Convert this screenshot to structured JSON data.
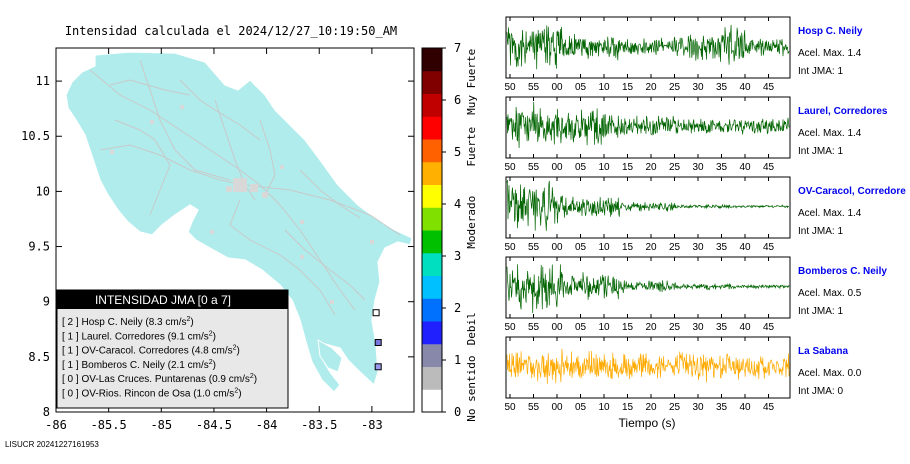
{
  "chart_data": [
    {
      "type": "map",
      "title": "Intensidad calculada el 2024/12/27_10:19:50_AM",
      "footer": "LISUCR 20241227161953",
      "xticks": [
        "-86",
        "-85.5",
        "-85",
        "-84.5",
        "-84",
        "-83.5",
        "-83"
      ],
      "yticks": [
        "11",
        "10.5",
        "10",
        "9.5",
        "9",
        "8.5",
        "8"
      ],
      "xlim": [
        -86,
        -82.6
      ],
      "ylim": [
        8,
        11.3
      ],
      "legend": {
        "title": "INTENSIDAD JMA [0 a 7]",
        "items": [
          {
            "jma": "[ 2 ]",
            "name": "Hosp C. Neily",
            "acc": "(8.3 cm/s",
            "sup": "2",
            ")": ")"
          },
          {
            "jma": "[ 1 ]",
            "name": "Laurel. Corredores",
            "acc": "(9.1 cm/s",
            "sup": "2"
          },
          {
            "jma": "[ 1 ]",
            "name": "OV-Caracol. Corredores",
            "acc": "(4.8 cm/s",
            "sup": "2"
          },
          {
            "jma": "[ 1 ]",
            "name": "Bomberos C. Neily",
            "acc": "(2.1 cm/s",
            "sup": "2"
          },
          {
            "jma": "[ 0 ]",
            "name": "OV-Las Cruces. Puntarenas",
            "acc": "(0.9 cm/s",
            "sup": "2"
          },
          {
            "jma": "[ 0 ]",
            "name": "OV-Rios. Rincon de Osa",
            "acc": "(1.0 cm/s",
            "sup": "2"
          }
        ]
      },
      "stations": [
        {
          "lon": -82.96,
          "lat": 8.9,
          "color": "#ffffff"
        },
        {
          "lon": -82.94,
          "lat": 8.63,
          "color": "#7777dd"
        },
        {
          "lon": -82.94,
          "lat": 8.41,
          "color": "#9999ee"
        }
      ],
      "colorbar": {
        "ticks": [
          "0",
          "1",
          "2",
          "3",
          "4",
          "5",
          "6",
          "7"
        ],
        "labels": [
          "No sentido",
          "Debil",
          "Moderado",
          "Fuerte",
          "Muy Fuerte"
        ],
        "colors": [
          "#ffffff",
          "#bbbbbb",
          "#8888aa",
          "#2020ff",
          "#0070ff",
          "#00c0ff",
          "#00e0c0",
          "#00c000",
          "#80e000",
          "#ffff00",
          "#ffb000",
          "#ff6000",
          "#ff0000",
          "#c00000",
          "#800000",
          "#300000"
        ]
      }
    },
    {
      "type": "line",
      "xlabel": "Tiempo (s)",
      "xticks": [
        "50",
        "55",
        "00",
        "05",
        "10",
        "15",
        "20",
        "25",
        "30",
        "35",
        "40",
        "45"
      ],
      "series": [
        {
          "name": "Hosp C. Neily",
          "acc": "Acel. Max. 1.4",
          "jma": "Int JMA: 1",
          "color": "#006400",
          "amp": [
            0.95,
            0.55,
            0.4,
            0.6,
            0.45
          ]
        },
        {
          "name": "Laurel, Corredores",
          "acc": "Acel. Max. 1.4",
          "jma": "Int JMA: 1",
          "color": "#006400",
          "amp": [
            0.9,
            0.75,
            0.45,
            0.3,
            0.35
          ]
        },
        {
          "name": "OV-Caracol, Corredore",
          "acc": "Acel. Max. 1.4",
          "jma": "Int JMA: 1",
          "color": "#006400",
          "amp": [
            1.0,
            0.45,
            0.2,
            0.08,
            0.05
          ]
        },
        {
          "name": "Bomberos C. Neily",
          "acc": "Acel. Max. 0.5",
          "jma": "Int JMA: 1",
          "color": "#006400",
          "amp": [
            1.0,
            0.55,
            0.25,
            0.12,
            0.08
          ]
        },
        {
          "name": "La Sabana",
          "acc": "Acel. Max. 0.0",
          "jma": "Int JMA: 0",
          "color": "#ffaa00",
          "amp": [
            0.75,
            0.6,
            0.55,
            0.6,
            0.5
          ]
        }
      ]
    }
  ]
}
